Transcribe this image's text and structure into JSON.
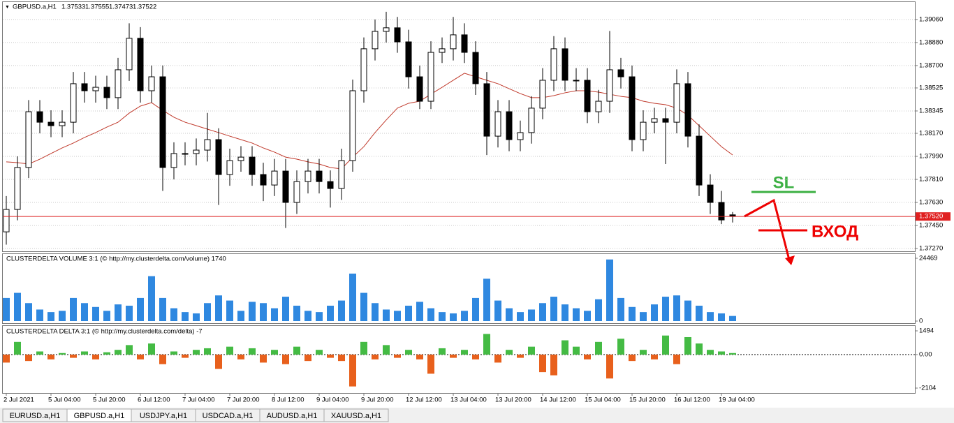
{
  "chart_data": [
    {
      "type": "candlestick",
      "title": "GBPUSD.a,H1",
      "x": [
        "2 Jul 2021",
        null,
        null,
        null,
        "5 Jul 04:00",
        null,
        null,
        null,
        "5 Jul 20:00",
        null,
        null,
        null,
        "6 Jul 12:00",
        null,
        null,
        null,
        "7 Jul 04:00",
        null,
        null,
        null,
        "7 Jul 20:00",
        null,
        null,
        null,
        "8 Jul 12:00",
        null,
        null,
        null,
        "9 Jul 04:00",
        null,
        null,
        null,
        "9 Jul 20:00",
        null,
        null,
        null,
        "12 Jul 12:00",
        null,
        null,
        null,
        "13 Jul 04:00",
        null,
        null,
        null,
        "13 Jul 20:00",
        null,
        null,
        null,
        "14 Jul 12:00",
        null,
        null,
        null,
        "15 Jul 04:00",
        null,
        null,
        null,
        "15 Jul 20:00",
        null,
        null,
        null,
        "16 Jul 12:00",
        null,
        null,
        null,
        "19 Jul 04:00",
        null
      ],
      "open": [
        1.374,
        1.37575,
        1.37903,
        1.38339,
        1.38257,
        1.3823,
        1.38257,
        1.38558,
        1.38503,
        1.3853,
        1.38449,
        1.38667,
        1.38913,
        1.38503,
        1.38612,
        1.37903,
        1.38012,
        1.38012,
        1.38039,
        1.38121,
        1.37848,
        1.37957,
        1.37984,
        1.37848,
        1.37766,
        1.37875,
        1.3763,
        1.37793,
        1.37875,
        1.37793,
        1.37739,
        1.37957,
        1.38503,
        1.38831,
        1.38967,
        1.38995,
        1.38885,
        1.38612,
        1.38421,
        1.38803,
        1.38831,
        1.3894,
        1.38803,
        1.38558,
        1.38148,
        1.38339,
        1.38121,
        1.38176,
        1.38367,
        1.38585,
        1.38831,
        1.38585,
        1.38585,
        1.38339,
        1.38421,
        1.38667,
        1.38612,
        1.38121,
        1.38257,
        1.38285,
        1.38257,
        1.38558,
        1.38148,
        1.37766,
        1.3763,
        1.37533
      ],
      "high": [
        1.3768,
        1.3799,
        1.3843,
        1.3843,
        1.3835,
        1.3835,
        1.3865,
        1.3865,
        1.3862,
        1.3862,
        1.3876,
        1.3903,
        1.39,
        1.387,
        1.387,
        1.381,
        1.381,
        1.3813,
        1.3833,
        1.3821,
        1.3805,
        1.3807,
        1.3807,
        1.3794,
        1.3797,
        1.3797,
        1.3788,
        1.3797,
        1.3797,
        1.3788,
        1.3805,
        1.3859,
        1.3892,
        1.3906,
        1.3912,
        1.3908,
        1.3898,
        1.387,
        1.3889,
        1.3892,
        1.3908,
        1.3903,
        1.3889,
        1.3865,
        1.3843,
        1.3843,
        1.3827,
        1.3846,
        1.3868,
        1.3893,
        1.3892,
        1.3868,
        1.3868,
        1.3851,
        1.3897,
        1.3876,
        1.387,
        1.3835,
        1.3837,
        1.3837,
        1.3867,
        1.3865,
        1.3824,
        1.3785,
        1.3772,
        1.37555
      ],
      "low": [
        1.373,
        1.3749,
        1.3782,
        1.3817,
        1.3814,
        1.3814,
        1.3817,
        1.3841,
        1.3841,
        1.3836,
        1.3836,
        1.3858,
        1.3841,
        1.3841,
        1.3772,
        1.3781,
        1.3792,
        1.3792,
        1.3795,
        1.3761,
        1.3776,
        1.3787,
        1.3776,
        1.3764,
        1.3768,
        1.3743,
        1.3754,
        1.377,
        1.377,
        1.3759,
        1.3765,
        1.3787,
        1.3841,
        1.3874,
        1.3888,
        1.388,
        1.3852,
        1.3836,
        1.3836,
        1.3872,
        1.3874,
        1.3872,
        1.3847,
        1.38,
        1.3806,
        1.3803,
        1.3803,
        1.3809,
        1.3828,
        1.385,
        1.385,
        1.385,
        1.3825,
        1.3825,
        1.3833,
        1.3852,
        1.3803,
        1.3803,
        1.3817,
        1.3793,
        1.3817,
        1.3806,
        1.3768,
        1.3754,
        1.3746,
        1.37473
      ],
      "close": [
        1.37575,
        1.37903,
        1.38339,
        1.38257,
        1.3823,
        1.38257,
        1.38558,
        1.38503,
        1.3853,
        1.38449,
        1.38667,
        1.38913,
        1.38503,
        1.38612,
        1.37903,
        1.38012,
        1.38012,
        1.38039,
        1.38121,
        1.37848,
        1.37957,
        1.37984,
        1.37848,
        1.37766,
        1.37875,
        1.3763,
        1.37793,
        1.37875,
        1.37793,
        1.37739,
        1.37957,
        1.38503,
        1.38831,
        1.38967,
        1.38995,
        1.38885,
        1.38612,
        1.38421,
        1.38803,
        1.38831,
        1.3894,
        1.38803,
        1.38558,
        1.38148,
        1.38339,
        1.38121,
        1.38176,
        1.38367,
        1.38585,
        1.38831,
        1.38585,
        1.38585,
        1.38339,
        1.38421,
        1.38667,
        1.38612,
        1.38121,
        1.38257,
        1.38285,
        1.38257,
        1.38558,
        1.38148,
        1.37766,
        1.3763,
        1.37493,
        1.37522
      ],
      "ma": {
        "color": "#c0392b",
        "values": [
          1.37947,
          1.37941,
          1.3793,
          1.37968,
          1.38012,
          1.38056,
          1.38094,
          1.38138,
          1.38176,
          1.38219,
          1.38257,
          1.38328,
          1.38383,
          1.3841,
          1.3835,
          1.38296,
          1.38257,
          1.3823,
          1.38203,
          1.38176,
          1.38148,
          1.38121,
          1.38094,
          1.38056,
          1.38023,
          1.37984,
          1.37968,
          1.37947,
          1.3793,
          1.37903,
          1.37892,
          1.37984,
          1.38066,
          1.38176,
          1.38274,
          1.38367,
          1.38405,
          1.38421,
          1.38476,
          1.3853,
          1.38585,
          1.3864,
          1.38612,
          1.38585,
          1.38558,
          1.38519,
          1.38481,
          1.38449,
          1.38449,
          1.38465,
          1.38487,
          1.38503,
          1.38503,
          1.38492,
          1.38476,
          1.38459,
          1.38449,
          1.38421,
          1.38405,
          1.38394,
          1.38367,
          1.38312,
          1.3823,
          1.38148,
          1.38066,
          1.38001
        ]
      },
      "current_price": {
        "value": 1.3752,
        "label": "1.37520"
      },
      "ylim": [
        1.37248,
        1.39196
      ],
      "yticks": [
        {
          "value": 1.3906,
          "label": "1.39060"
        },
        {
          "value": 1.3888,
          "label": "1.38880"
        },
        {
          "value": 1.387,
          "label": "1.38700"
        },
        {
          "value": 1.38525,
          "label": "1.38525"
        },
        {
          "value": 1.38345,
          "label": "1.38345"
        },
        {
          "value": 1.3817,
          "label": "1.38170"
        },
        {
          "value": 1.3799,
          "label": "1.37990"
        },
        {
          "value": 1.3781,
          "label": "1.37810"
        },
        {
          "value": 1.3763,
          "label": "1.37630"
        },
        {
          "value": 1.3745,
          "label": "1.37450"
        },
        {
          "value": 1.3727,
          "label": "1.37270"
        }
      ],
      "grid": true,
      "annotations": {
        "stop_loss": "SL",
        "entry": "ВХОД"
      }
    },
    {
      "type": "bar",
      "title": "CLUSTERDELTA VOLUME 3:1 (© http://my.clusterdelta.com/volume) 1740",
      "color": "#2f88e0",
      "values": [
        9000,
        11000,
        7000,
        4500,
        3500,
        4000,
        9000,
        7000,
        5500,
        4000,
        6500,
        6000,
        9000,
        17500,
        9000,
        5000,
        3500,
        3000,
        7000,
        10000,
        8000,
        4000,
        7500,
        7000,
        5000,
        9500,
        6000,
        4000,
        3500,
        6000,
        8000,
        18500,
        11000,
        7000,
        4500,
        4000,
        6000,
        7500,
        5000,
        3500,
        3000,
        4000,
        9000,
        16500,
        8000,
        5000,
        3500,
        4500,
        7000,
        9500,
        6500,
        5000,
        4000,
        8500,
        24000,
        9000,
        5500,
        3500,
        6500,
        9500,
        10000,
        8000,
        6000,
        3500,
        3000,
        2000
      ],
      "ylim": [
        0,
        24469
      ],
      "yticks": [
        0,
        24469
      ]
    },
    {
      "type": "bar",
      "title": "CLUSTERDELTA DELTA 3:1 (© http://my.clusterdelta.com/delta) -7",
      "color": "#44bb44",
      "negative_color": "#e8601c",
      "values": [
        -500,
        800,
        -400,
        200,
        -300,
        100,
        -200,
        200,
        -300,
        150,
        300,
        600,
        -300,
        700,
        -600,
        200,
        -200,
        300,
        400,
        -900,
        500,
        -300,
        400,
        -500,
        300,
        -600,
        500,
        -400,
        300,
        -200,
        -400,
        -2000,
        800,
        -300,
        600,
        -200,
        300,
        -300,
        -1200,
        400,
        -200,
        300,
        -300,
        1300,
        -500,
        300,
        -200,
        500,
        -1100,
        -1300,
        900,
        500,
        -300,
        800,
        -1500,
        1000,
        -400,
        300,
        -300,
        1200,
        -600,
        1100,
        700,
        300,
        200,
        100
      ],
      "ylim": [
        -2104,
        1494
      ],
      "yticks": [
        1494,
        {
          "value": 0,
          "label": "0.00"
        },
        -2104
      ]
    }
  ],
  "tabs": {
    "items": [
      "EURUSD.a,H1",
      "GBPUSD.a,H1",
      "USDJPY.a,H1",
      "USDCAD.a,H1",
      "AUDUSD.a,H1",
      "XAUUSD.a,H1"
    ],
    "active": 1
  }
}
